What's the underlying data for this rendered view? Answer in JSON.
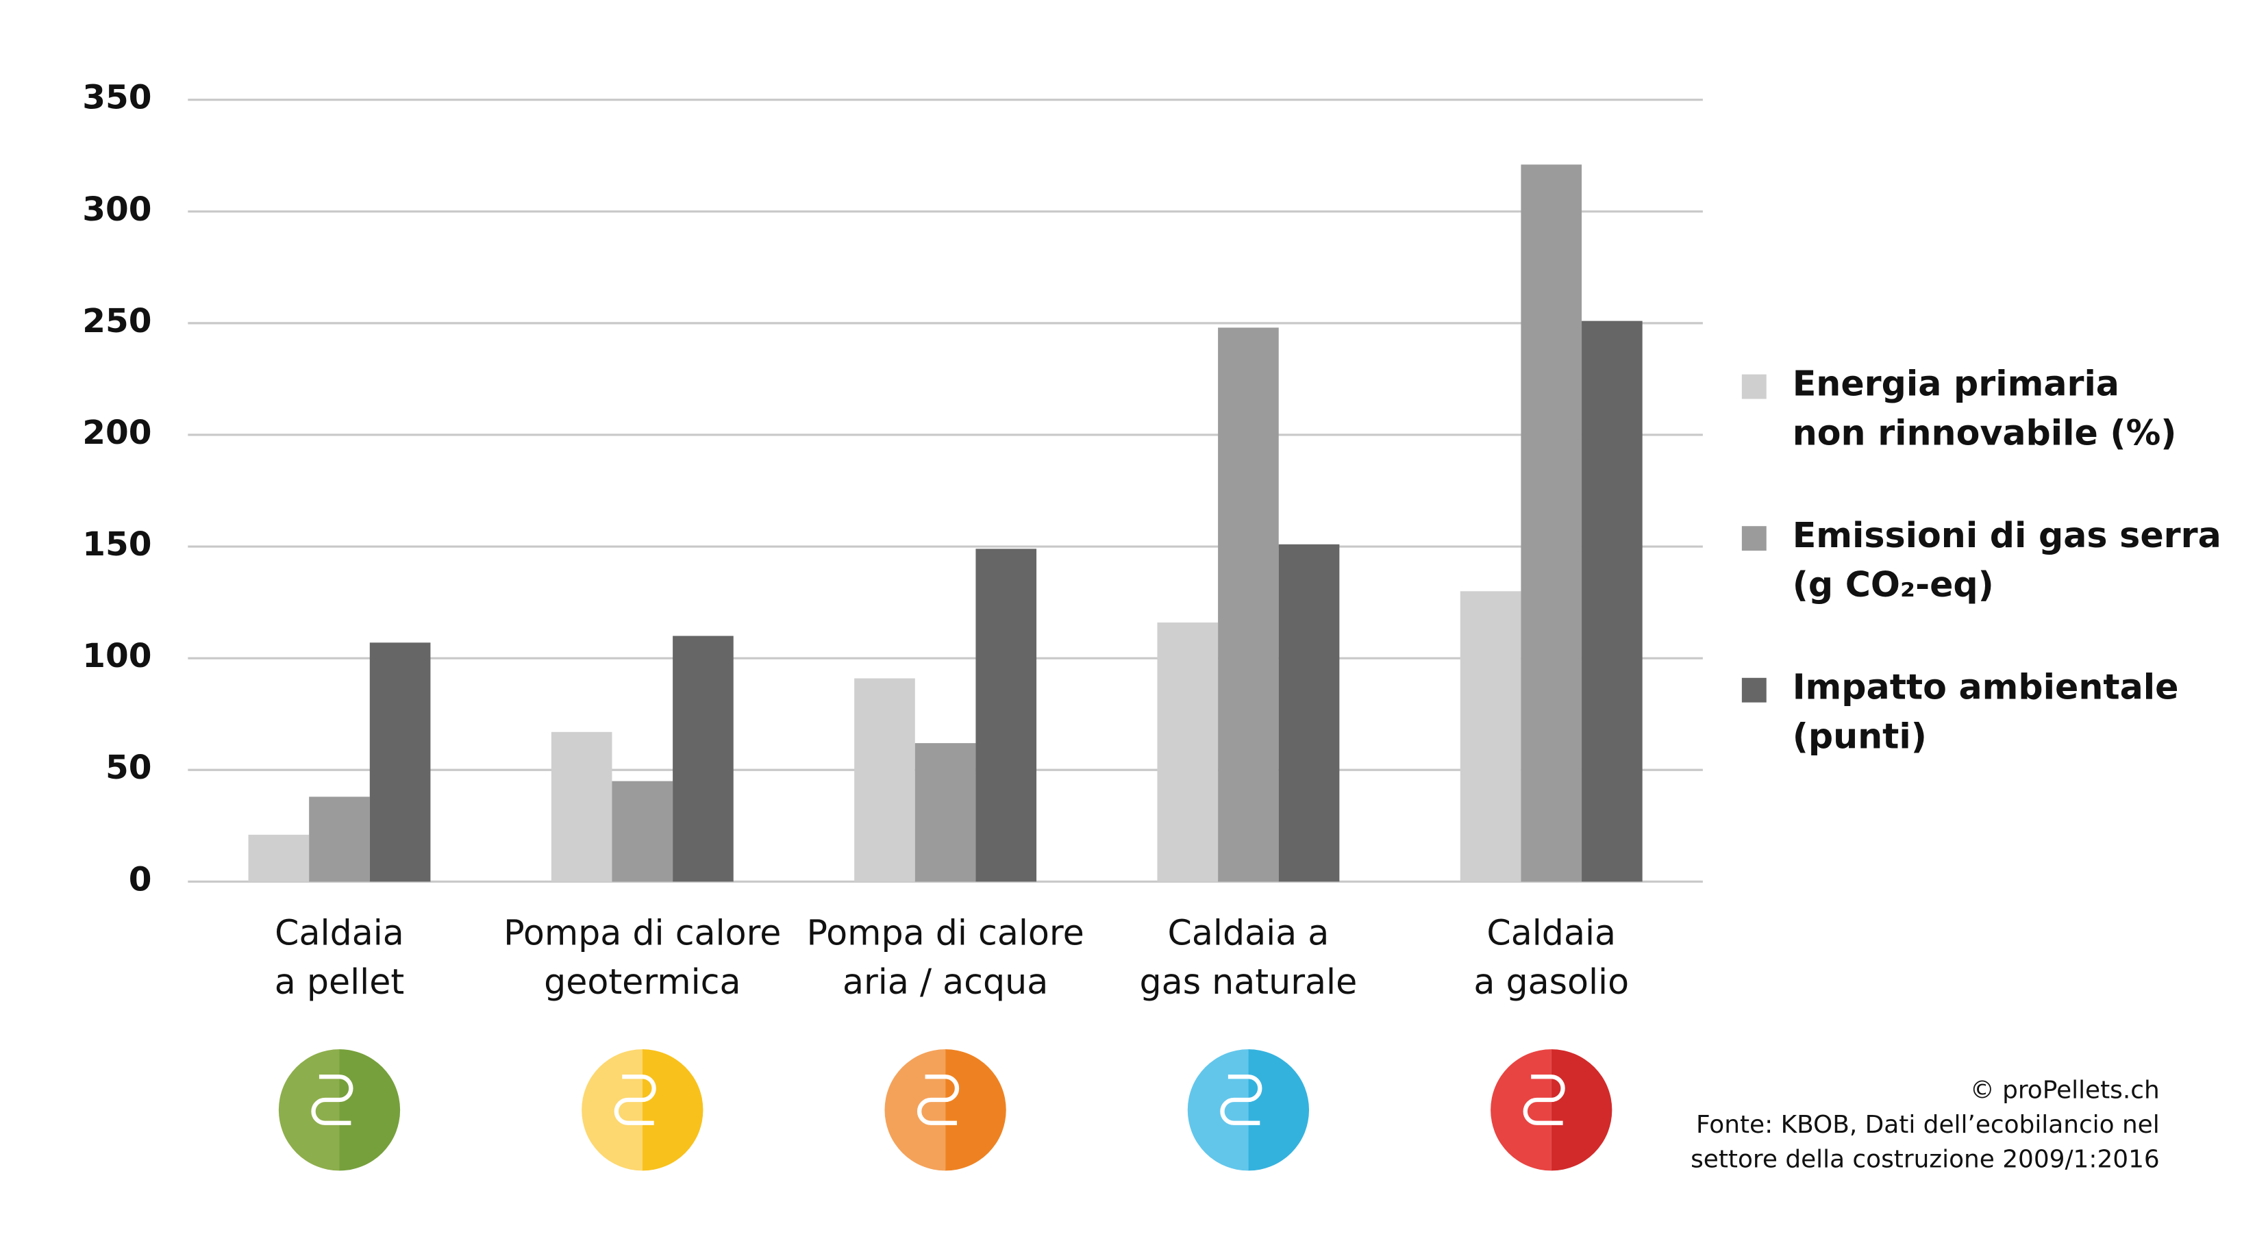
{
  "chart_data": {
    "type": "bar",
    "categories": [
      "Caldaia\na pellet",
      "Pompa di calore\ngeotermica",
      "Pompa di calore\naria / acqua",
      "Caldaia a\ngas naturale",
      "Caldaia\na gasolio"
    ],
    "series": [
      {
        "name": "Energia primaria\nnon rinnovabile (%)",
        "color": "#cfcfcf",
        "values": [
          21,
          67,
          91,
          116,
          130
        ]
      },
      {
        "name": "Emissioni di gas serra\n(g CO₂-eq)",
        "color": "#9b9b9b",
        "values": [
          38,
          45,
          62,
          248,
          321
        ]
      },
      {
        "name": "Impatto ambientale\n(punti)",
        "color": "#666666",
        "values": [
          107,
          110,
          149,
          151,
          251
        ]
      }
    ],
    "ylim": [
      0,
      350
    ],
    "yticks": [
      0,
      50,
      100,
      150,
      200,
      250,
      300,
      350
    ],
    "grid": true,
    "legend": "right",
    "source": [
      "© proPellets.ch",
      "Fonte: KBOB, Dati dell’ecobilancio nel",
      "settore della costruzione 2009/1:2016"
    ]
  }
}
